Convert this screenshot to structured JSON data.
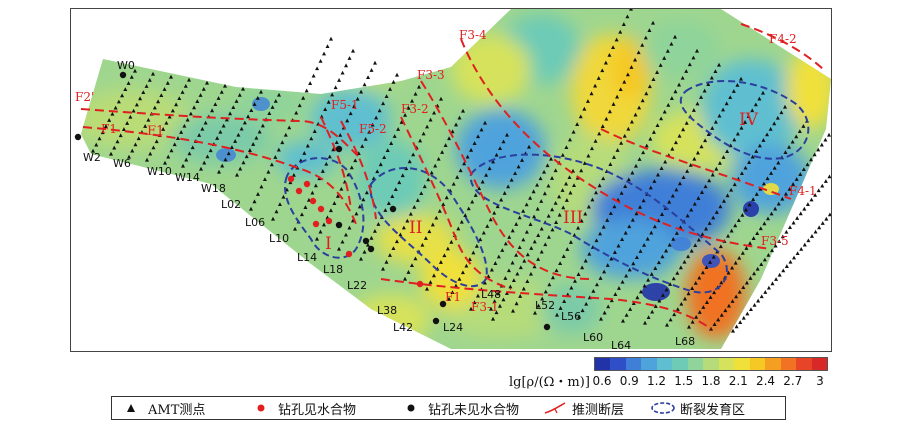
{
  "map": {
    "stations": [
      "W0",
      "W2",
      "W6",
      "W10",
      "W14",
      "W18",
      "L02",
      "L06",
      "L10",
      "L14",
      "L18",
      "L22",
      "L38",
      "L42",
      "L24",
      "L48",
      "L52",
      "L56",
      "L60",
      "L64",
      "L68"
    ],
    "faults": {
      "f2": "F2'",
      "f1": "F1",
      "f51": "F5-1",
      "f52": "F5-2",
      "f32": "F3-2",
      "f33": "F3-3",
      "f34": "F3-4",
      "f31": "F3-1",
      "f35": "F3-5",
      "f41": "F4-1",
      "f42": "F4-2",
      "f1b": "F1"
    },
    "zones": [
      "I",
      "II",
      "III",
      "IV"
    ],
    "zone_f1": "F1",
    "colors": {
      "fault": "#e02020",
      "zone_outline": "#2b3f9e",
      "drill_water": "#e02020",
      "drill_dry": "#111111"
    }
  },
  "colorbar": {
    "label": "lg[ρ/(Ω・m)]",
    "ticks": [
      "0.6",
      "0.9",
      "1.2",
      "1.5",
      "1.8",
      "2.1",
      "2.4",
      "2.7",
      "3"
    ],
    "colors": [
      "#2233aa",
      "#2f4fc8",
      "#3f7fd8",
      "#4fa3dc",
      "#5fbfd0",
      "#6dcbb6",
      "#8fd49a",
      "#b6dc7a",
      "#d6e25c",
      "#f0e03a",
      "#f6c824",
      "#f49e22",
      "#f07222",
      "#e84428",
      "#d82828"
    ]
  },
  "legend": {
    "items": [
      {
        "label": "AMT测点",
        "icon": "triangle-icon"
      },
      {
        "label": "钻孔见水合物",
        "icon": "red-dot-icon"
      },
      {
        "label": "钻孔未见水合物",
        "icon": "black-dot-icon"
      },
      {
        "label": "推测断层",
        "icon": "fault-line-icon"
      },
      {
        "label": "断裂发育区",
        "icon": "dashed-ellipse-icon"
      }
    ]
  }
}
